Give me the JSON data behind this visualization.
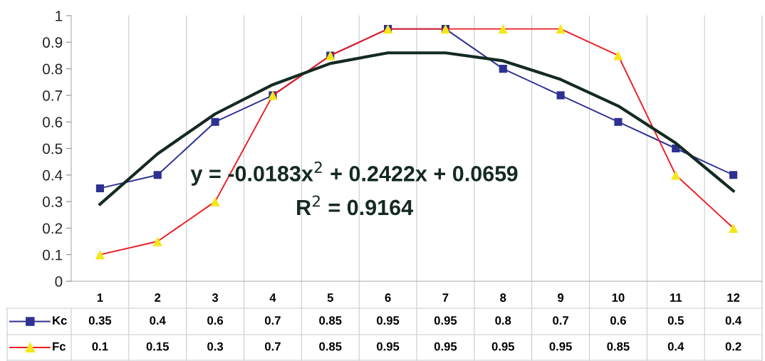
{
  "chart_data": {
    "type": "line",
    "categories": [
      "1",
      "2",
      "3",
      "4",
      "5",
      "6",
      "7",
      "8",
      "9",
      "10",
      "11",
      "12"
    ],
    "series": [
      {
        "name": "Kc",
        "color": "#2e3192",
        "marker": "square",
        "values": [
          0.35,
          0.4,
          0.6,
          0.7,
          0.85,
          0.95,
          0.95,
          0.8,
          0.7,
          0.6,
          0.5,
          0.4
        ],
        "value_labels": [
          "0.35",
          "0.4",
          "0.6",
          "0.7",
          "0.85",
          "0.95",
          "0.95",
          "0.8",
          "0.7",
          "0.6",
          "0.5",
          "0.4"
        ]
      },
      {
        "name": "Fc",
        "color": "#ed1c24",
        "marker": "triangle",
        "colors": [
          "#f5e61a",
          "#f5e61a",
          "#f5e61a",
          "#f5e61a",
          "#f5e61a",
          "#f5e61a",
          "#f5e61a",
          "#f5e61a",
          "#f5e61a",
          "#f5e61a",
          "#f5e61a",
          "#f5e61a"
        ],
        "values": [
          0.1,
          0.15,
          0.3,
          0.7,
          0.85,
          0.95,
          0.95,
          0.95,
          0.95,
          0.85,
          0.4,
          0.2
        ],
        "value_labels": [
          "0.1",
          "0.15",
          "0.3",
          "0.7",
          "0.85",
          "0.95",
          "0.95",
          "0.95",
          "0.95",
          "0.85",
          "0.4",
          "0.2"
        ]
      },
      {
        "color": "#142a22",
        "marker": "none",
        "values": [
          0.29,
          0.48,
          0.63,
          0.74,
          0.82,
          0.86,
          0.86,
          0.83,
          0.76,
          0.66,
          0.52,
          0.34
        ]
      }
    ],
    "ylim": [
      0,
      1
    ],
    "yticks": [
      0,
      0.1,
      0.2,
      0.3,
      0.4,
      0.5,
      0.6,
      0.7,
      0.8,
      0.9,
      1
    ],
    "annotations": [
      "y = -0.0183x$^{2}$ + 0.2422x + 0.0659",
      "R$^{2}$ = 0.9164"
    ],
    "grid": "x",
    "legend": "bottom"
  }
}
